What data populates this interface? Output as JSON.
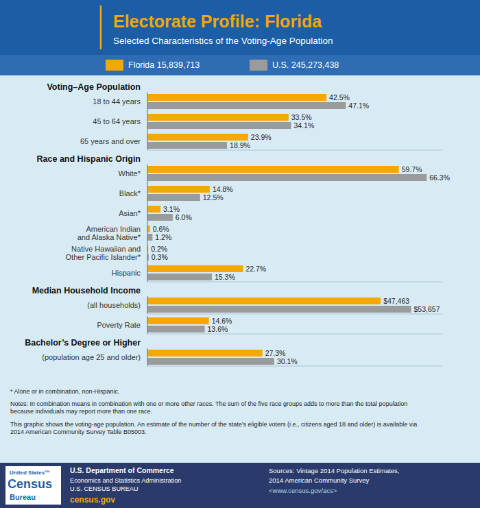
{
  "title": "Electorate Profile: Florida",
  "subtitle": "Selected Characteristics of the Voting-Age Population",
  "annotations": [
    "* Alone or in combination, non-Hispanic.",
    "Notes: In combination means in combination with one or more other races. The sum of the five race groups adds to more than the total population\nbecause individuals may report more than one race.",
    "This graphic shows the voting-age population. An estimate of the number of the state’s eligible voters (i.e., citizens aged 18 and older) is available via\n2014 American Community Survey Table B05003."
  ],
  "footer": [
    "United States™",
    "Census",
    "Bureau",
    "U.S. Department of Commerce",
    "Economics and Statistics Administration",
    "U.S. CENSUS BUREAU",
    "census.gov",
    "Sources: Vintage 2014 Population Estimates,",
    "2014 American Community Survey",
    "<www.census.gov/acs>"
  ],
  "chart_data": [
    {
      "type": "bar",
      "orientation": "horizontal",
      "title": "Voting–Age Population",
      "categories": [
        "18 to 44 years",
        "45 to 64 years",
        "65 years and over"
      ],
      "series": [
        {
          "name": "Florida 15,839,713",
          "color": "#F5A800",
          "values": [
            42.5,
            33.5,
            23.9
          ],
          "value_labels": [
            "42.5%",
            "33.5%",
            "23.9%"
          ]
        },
        {
          "name": "U.S. 245,273,438",
          "color": "#9B9B9B",
          "values": [
            47.1,
            34.1,
            18.9
          ],
          "value_labels": [
            "47.1%",
            "34.1%",
            "18.9%"
          ]
        }
      ],
      "xlim": [
        0,
        70
      ],
      "data_labels": true,
      "tick_labels": false,
      "legend": "top"
    },
    {
      "type": "bar",
      "orientation": "horizontal",
      "title": "Race and Hispanic Origin",
      "categories": [
        "White*",
        "Black*",
        "Asian*",
        "American Indian\nand Alaska Native*",
        "Native Hawaiian and\nOther Pacific Islander*",
        "Hispanic"
      ],
      "series": [
        {
          "name": "Florida 15,839,713",
          "color": "#F5A800",
          "values": [
            59.7,
            14.8,
            3.1,
            0.6,
            0.2,
            22.7
          ],
          "value_labels": [
            "59.7%",
            "14.8%",
            "3.1%",
            "0.6%",
            "0.2%",
            "22.7%"
          ]
        },
        {
          "name": "U.S. 245,273,438",
          "color": "#9B9B9B",
          "values": [
            66.3,
            12.5,
            6.0,
            1.2,
            0.3,
            15.3
          ],
          "value_labels": [
            "66.3%",
            "12.5%",
            "6.0%",
            "1.2%",
            "0.3%",
            "15.3%"
          ]
        }
      ],
      "xlim": [
        0,
        70
      ],
      "data_labels": true,
      "tick_labels": false
    },
    {
      "type": "bar",
      "orientation": "horizontal",
      "title": "Median Household Income",
      "categories": [
        "(all households)"
      ],
      "series": [
        {
          "name": "Florida 15,839,713",
          "color": "#F5A800",
          "values": [
            47463
          ],
          "value_labels": [
            "$47,463"
          ]
        },
        {
          "name": "U.S. 245,273,438",
          "color": "#9B9B9B",
          "values": [
            53657
          ],
          "value_labels": [
            "$53,657"
          ]
        }
      ],
      "xlim": [
        0,
        60000
      ],
      "data_labels": true,
      "tick_labels": false
    },
    {
      "type": "bar",
      "orientation": "horizontal",
      "categories": [
        "Poverty Rate"
      ],
      "series": [
        {
          "name": "Florida 15,839,713",
          "color": "#F5A800",
          "values": [
            14.6
          ],
          "value_labels": [
            "14.6%"
          ]
        },
        {
          "name": "U.S. 245,273,438",
          "color": "#9B9B9B",
          "values": [
            13.6
          ],
          "value_labels": [
            "13.6%"
          ]
        }
      ],
      "xlim": [
        0,
        70
      ],
      "data_labels": true,
      "tick_labels": false
    },
    {
      "type": "bar",
      "orientation": "horizontal",
      "title": "Bachelor’s Degree or Higher",
      "categories": [
        "(population age 25 and older)"
      ],
      "series": [
        {
          "name": "Florida 15,839,713",
          "color": "#F5A800",
          "values": [
            27.3
          ],
          "value_labels": [
            "27.3%"
          ]
        },
        {
          "name": "U.S. 245,273,438",
          "color": "#9B9B9B",
          "values": [
            30.1
          ],
          "value_labels": [
            "30.1%"
          ]
        }
      ],
      "xlim": [
        0,
        70
      ],
      "data_labels": true,
      "tick_labels": false
    }
  ]
}
